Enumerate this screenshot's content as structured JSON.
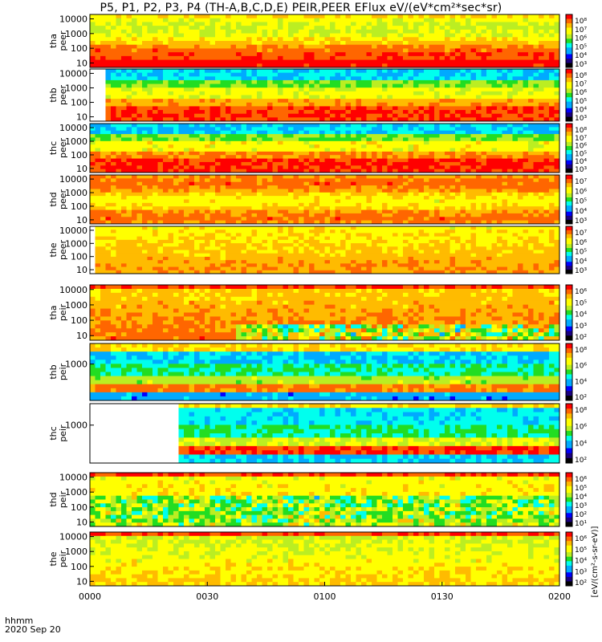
{
  "title": "P5, P1, P2, P3, P4 (TH-A,B,C,D,E) PEIR,PEER EFlux eV/(eV*cm²*sec*sr)",
  "footer": {
    "time_label": "hhmm",
    "date_label": "2020 Sep 20"
  },
  "colorbar_label": "[eV/(cm²-s-sr-eV)]",
  "chart_data": {
    "type": "heatmap",
    "x_axis": {
      "ticks": [
        "0000",
        "0030",
        "0100",
        "0130",
        "0200"
      ],
      "range": [
        "00:00",
        "02:00"
      ]
    },
    "panels": [
      {
        "id": "tha_peer",
        "label_line1": "tha",
        "label_line2": "peer",
        "yticks": [
          "10000",
          "1000",
          "100",
          "10"
        ],
        "ylog": true,
        "yrange": [
          5,
          20000
        ],
        "cbar_ticks": [
          "10⁸",
          "10⁷",
          "10⁶",
          "10⁵",
          "10⁴",
          "10³"
        ]
      },
      {
        "id": "thb_peer",
        "label_line1": "thb",
        "label_line2": "peer",
        "yticks": [
          "10000",
          "1000",
          "100",
          "10"
        ],
        "ylog": true,
        "yrange": [
          5,
          20000
        ],
        "cbar_ticks": [
          "10⁸",
          "10⁷",
          "10⁶",
          "10⁵",
          "10⁴",
          "10³"
        ]
      },
      {
        "id": "thc_peer",
        "label_line1": "thc",
        "label_line2": "peer",
        "yticks": [
          "10000",
          "1000",
          "100",
          "10"
        ],
        "ylog": true,
        "yrange": [
          5,
          20000
        ],
        "cbar_ticks": [
          "10⁸",
          "10⁷",
          "10⁶",
          "10⁵",
          "10⁴",
          "10³"
        ]
      },
      {
        "id": "thd_peer",
        "label_line1": "thd",
        "label_line2": "peer",
        "yticks": [
          "10000",
          "1000",
          "100",
          "10"
        ],
        "ylog": true,
        "yrange": [
          5,
          20000
        ],
        "cbar_ticks": [
          "10⁷",
          "10⁶",
          "10⁵",
          "10⁴",
          "10³"
        ]
      },
      {
        "id": "the_peer",
        "label_line1": "the",
        "label_line2": "peer",
        "yticks": [
          "10000",
          "1000",
          "100",
          "10"
        ],
        "ylog": true,
        "yrange": [
          5,
          20000
        ],
        "cbar_ticks": [
          "10⁷",
          "10⁶",
          "10⁵",
          "10⁴",
          "10³"
        ]
      },
      {
        "id": "tha_peir",
        "label_line1": "tha",
        "label_line2": "peir",
        "yticks": [
          "10000",
          "1000",
          "100",
          "10"
        ],
        "ylog": true,
        "yrange": [
          5,
          20000
        ],
        "cbar_ticks": [
          "10⁶",
          "10⁵",
          "10⁴",
          "10³",
          "10²"
        ]
      },
      {
        "id": "thb_peir",
        "label_line1": "thb",
        "label_line2": "peir",
        "yticks": [
          "1000"
        ],
        "ylog": true,
        "yrange": [
          5,
          20000
        ],
        "cbar_ticks": [
          "10⁸",
          "10⁶",
          "10⁴",
          "10²"
        ]
      },
      {
        "id": "thc_peir",
        "label_line1": "thc",
        "label_line2": "peir",
        "yticks": [
          "1000"
        ],
        "ylog": true,
        "yrange": [
          5,
          20000
        ],
        "cbar_ticks": [
          "10⁸",
          "10⁶",
          "10⁴",
          "10²"
        ]
      },
      {
        "id": "thd_peir",
        "label_line1": "thd",
        "label_line2": "peir",
        "yticks": [
          "10000",
          "1000",
          "100",
          "10"
        ],
        "ylog": true,
        "yrange": [
          5,
          20000
        ],
        "cbar_ticks": [
          "10⁶",
          "10⁵",
          "10⁴",
          "10³",
          "10²",
          "10¹"
        ]
      },
      {
        "id": "the_peir",
        "label_line1": "the",
        "label_line2": "peir",
        "yticks": [
          "10000",
          "1000",
          "100",
          "10"
        ],
        "ylog": true,
        "yrange": [
          5,
          20000
        ],
        "cbar_ticks": [
          "10⁶",
          "10⁵",
          "10⁴",
          "10³",
          "10²"
        ]
      }
    ],
    "colormap": [
      "#000000",
      "#1a0080",
      "#0000ff",
      "#00aaff",
      "#00ffee",
      "#22dd22",
      "#bbee22",
      "#ffff00",
      "#ffbb00",
      "#ff6600",
      "#ff0000"
    ]
  }
}
